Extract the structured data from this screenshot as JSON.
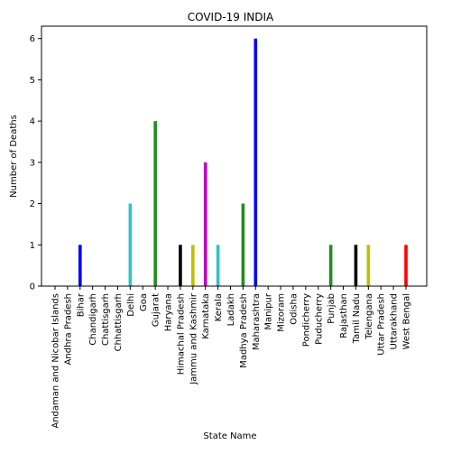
{
  "chart_data": {
    "type": "bar",
    "title": "COVID-19 INDIA",
    "xlabel": "State Name",
    "ylabel": "Number of Deaths",
    "ylim": [
      0,
      6.3
    ],
    "yticks": [
      0,
      1,
      2,
      3,
      4,
      5,
      6
    ],
    "grid": false,
    "legend": "none",
    "categories": [
      "Andaman and Nicobar Islands",
      "Andhra Pradesh",
      "Bihar",
      "Chandigarh",
      "Chattisgarh",
      "Chhattisgarh",
      "Delhi",
      "Goa",
      "Gujarat",
      "Haryana",
      "Himachal Pradesh",
      "Jammu and Kashmir",
      "Karnataka",
      "Kerala",
      "Ladakh",
      "Madhya Pradesh",
      "Maharashtra",
      "Manipur",
      "Mizoram",
      "Odisha",
      "Pondicherry",
      "Puducherry",
      "Punjab",
      "Rajasthan",
      "Tamil Nadu",
      "Telengana",
      "Uttar Pradesh",
      "Uttarakhand",
      "West Bengal"
    ],
    "values": [
      0,
      0,
      1,
      0,
      0,
      0,
      2,
      0,
      4,
      0,
      1,
      1,
      3,
      1,
      0,
      2,
      6,
      0,
      0,
      0,
      0,
      0,
      1,
      0,
      1,
      1,
      0,
      0,
      1
    ],
    "bar_colors": [
      "#1f77b4",
      "#d62728",
      "#0000ff",
      "#008000",
      "#d62728",
      "#000000",
      "#2ec4c4",
      "#bfbf00",
      "#228b22",
      "#c000c0",
      "#000000",
      "#bfbf00",
      "#c000c0",
      "#2ec4c4",
      "#000000",
      "#228b22",
      "#0000ff",
      "#d62728",
      "#228b22",
      "#bfbf00",
      "#c000c0",
      "#2ec4c4",
      "#228b22",
      "#d62728",
      "#000000",
      "#bfbf00",
      "#c000c0",
      "#2ec4c4",
      "#ff0000"
    ]
  }
}
